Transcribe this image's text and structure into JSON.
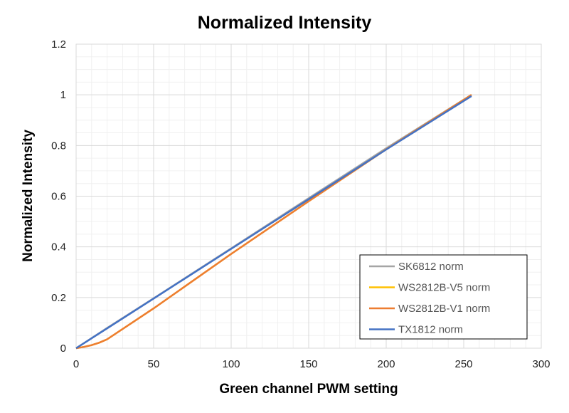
{
  "chart_data": {
    "type": "line",
    "title": "Normalized Intensity",
    "xlabel": "Green channel PWM setting",
    "ylabel": "Normalized Intensity",
    "xlim": [
      0,
      300
    ],
    "ylim": [
      0,
      1.2
    ],
    "x_ticks": [
      "0",
      "50",
      "100",
      "150",
      "200",
      "250",
      "300"
    ],
    "y_ticks": [
      "0",
      "0.2",
      "0.4",
      "0.6",
      "0.8",
      "1",
      "1.2"
    ],
    "grid": true,
    "legend_position": "bottom-right",
    "series": [
      {
        "name": "SK6812 norm",
        "color": "#a5a5a5",
        "x": [
          0,
          10,
          20,
          50,
          100,
          150,
          200,
          255
        ],
        "y": [
          0,
          0.04,
          0.08,
          0.197,
          0.394,
          0.592,
          0.789,
          1.0
        ]
      },
      {
        "name": "WS2812B-V5 norm",
        "color": "#ffc000",
        "x": [
          0,
          5,
          10,
          15,
          20,
          50,
          100,
          150,
          200,
          255
        ],
        "y": [
          0,
          0.005,
          0.012,
          0.022,
          0.035,
          0.157,
          0.372,
          0.58,
          0.785,
          1.0
        ]
      },
      {
        "name": "WS2812B-V1 norm",
        "color": "#ed7d31",
        "x": [
          0,
          5,
          10,
          15,
          20,
          50,
          100,
          150,
          200,
          255
        ],
        "y": [
          0,
          0.005,
          0.012,
          0.022,
          0.035,
          0.157,
          0.372,
          0.58,
          0.785,
          1.0
        ]
      },
      {
        "name": "TX1812 norm",
        "color": "#4472c4",
        "x": [
          0,
          10,
          20,
          50,
          100,
          150,
          200,
          255
        ],
        "y": [
          0,
          0.039,
          0.078,
          0.196,
          0.392,
          0.588,
          0.784,
          0.995
        ]
      }
    ]
  }
}
